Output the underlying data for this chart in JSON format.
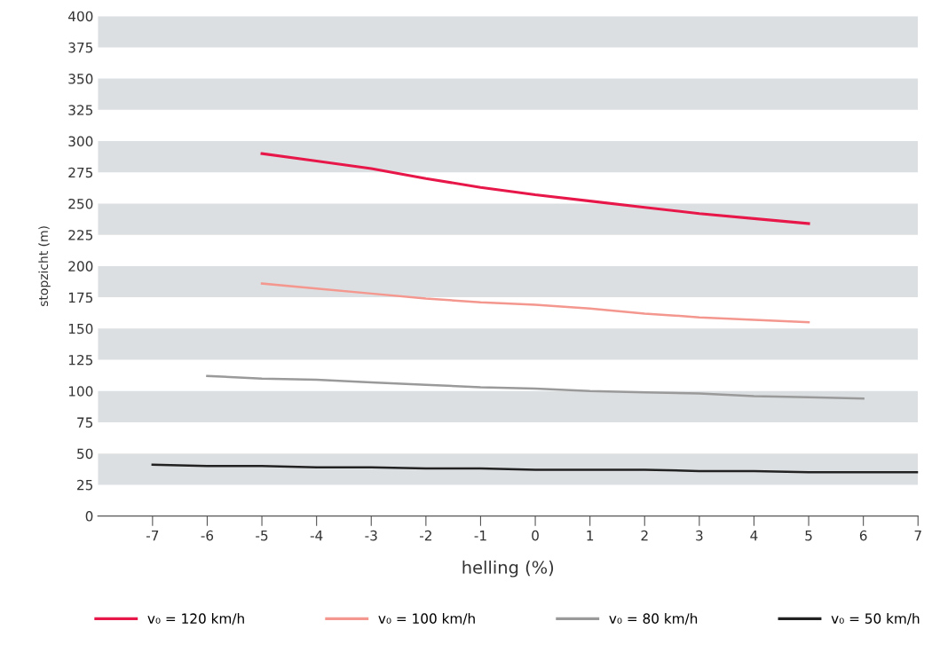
{
  "chart_data": {
    "type": "line",
    "xlabel": "helling (%)",
    "ylabel": "stopzicht (m)",
    "xlim": [
      -8,
      7
    ],
    "xticks": [
      -7,
      -6,
      -5,
      -4,
      -3,
      -2,
      -1,
      0,
      1,
      2,
      3,
      4,
      5,
      6,
      7
    ],
    "ylim": [
      0,
      400
    ],
    "yticks": [
      0,
      25,
      50,
      75,
      100,
      125,
      150,
      175,
      200,
      225,
      250,
      275,
      300,
      325,
      350,
      375,
      400
    ],
    "bands": [
      {
        "axis": "y",
        "from": 25,
        "to": 50,
        "color": "#dcdfe1"
      },
      {
        "axis": "y",
        "from": 75,
        "to": 100,
        "color": "#dcdfe1"
      },
      {
        "axis": "y",
        "from": 125,
        "to": 150,
        "color": "#dcdfe1"
      },
      {
        "axis": "y",
        "from": 175,
        "to": 200,
        "color": "#dcdfe1"
      },
      {
        "axis": "y",
        "from": 225,
        "to": 250,
        "color": "#dcdfe1"
      },
      {
        "axis": "y",
        "from": 275,
        "to": 300,
        "color": "#dcdfe1"
      },
      {
        "axis": "y",
        "from": 325,
        "to": 350,
        "color": "#dcdfe1"
      },
      {
        "axis": "y",
        "from": 375,
        "to": 400,
        "color": "#dcdfe1"
      }
    ],
    "legend": "bottom",
    "marker": "none",
    "line_style": "solid",
    "series": [
      {
        "name": "v₀ = 120 km/h",
        "color": "#e8174a",
        "x": [
          -5,
          -4,
          -3,
          -2,
          -1,
          0,
          1,
          2,
          3,
          4,
          5
        ],
        "values": [
          290,
          284,
          278,
          270,
          263,
          257,
          252,
          247,
          242,
          238,
          234
        ]
      },
      {
        "name": "v₀ = 100 km/h",
        "color": "#f4978e",
        "x": [
          -5,
          -4,
          -3,
          -2,
          -1,
          0,
          1,
          2,
          3,
          4,
          5
        ],
        "values": [
          186,
          182,
          178,
          174,
          171,
          169,
          166,
          162,
          159,
          157,
          155
        ]
      },
      {
        "name": "v₀ = 80 km/h",
        "color": "#9a9a9a",
        "x": [
          -6,
          -5,
          -4,
          -3,
          -2,
          -1,
          0,
          1,
          2,
          3,
          4,
          5,
          6
        ],
        "values": [
          112,
          110,
          109,
          107,
          105,
          103,
          102,
          100,
          99,
          98,
          96,
          95,
          94
        ]
      },
      {
        "name": "v₀ = 50 km/h",
        "color": "#222222",
        "x": [
          -7,
          -6,
          -5,
          -4,
          -3,
          -2,
          -1,
          0,
          1,
          2,
          3,
          4,
          5,
          6,
          7
        ],
        "values": [
          41,
          40,
          40,
          39,
          39,
          38,
          38,
          37,
          37,
          37,
          36,
          36,
          35,
          35,
          35
        ]
      }
    ]
  }
}
